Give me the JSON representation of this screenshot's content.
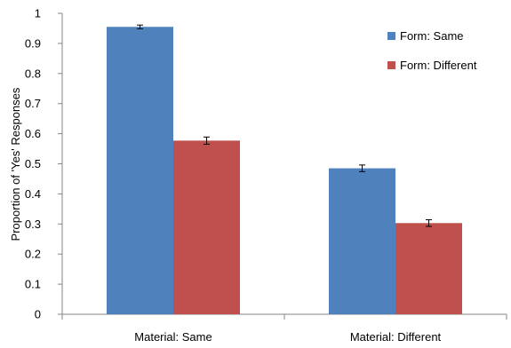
{
  "chart_data": {
    "type": "bar",
    "categories": [
      "Material: Same",
      "Material: Different"
    ],
    "series": [
      {
        "name": "Form: Same",
        "color": "#4F81BD",
        "values": [
          0.955,
          0.485
        ],
        "errors": [
          0.006,
          0.011
        ]
      },
      {
        "name": "Form: Different",
        "color": "#C0504D",
        "values": [
          0.577,
          0.303
        ],
        "errors": [
          0.012,
          0.011
        ]
      }
    ],
    "ylabel": "Proportion of 'Yes' Responses",
    "xlabel": "",
    "ylim": [
      0,
      1
    ],
    "yticks": [
      "0",
      "0.1",
      "0.2",
      "0.3",
      "0.4",
      "0.5",
      "0.6",
      "0.7",
      "0.8",
      "0.9",
      "1"
    ],
    "legend_position": "top-right",
    "grid": false
  }
}
